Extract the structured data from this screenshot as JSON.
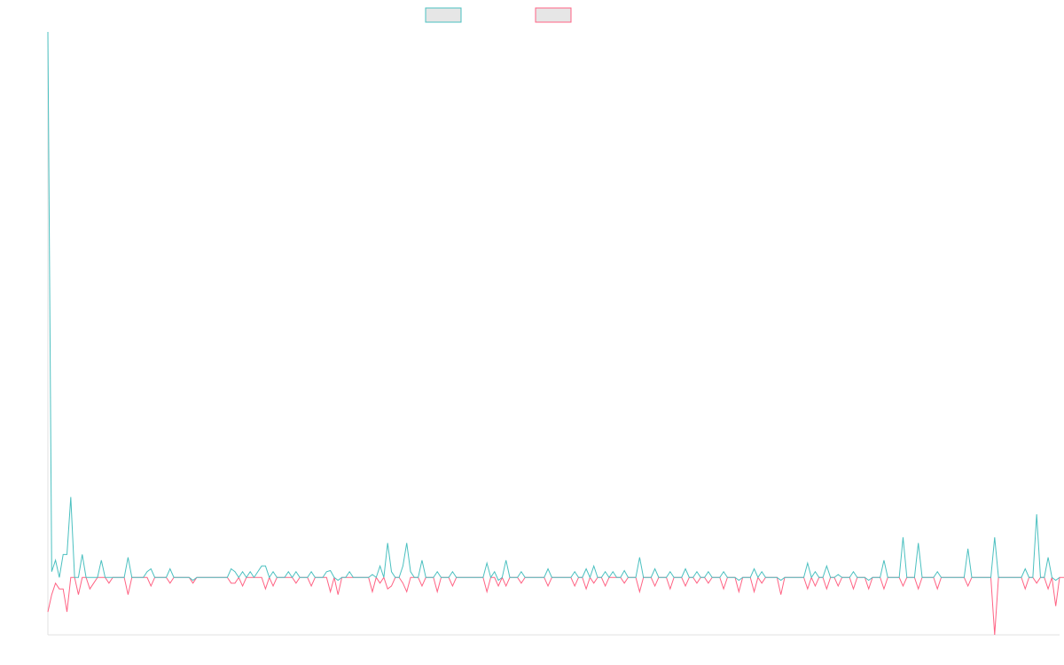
{
  "chart_data": {
    "type": "line",
    "title": "",
    "xlabel": "",
    "ylabel": "",
    "grid": false,
    "legend_position": "top",
    "x_range": [
      0,
      265
    ],
    "ylim": [
      -10,
      95
    ],
    "series": [
      {
        "color": "#4bc0c0",
        "values": [
          95,
          1,
          3,
          0,
          4,
          4,
          14,
          0,
          0,
          4,
          0,
          0,
          0,
          0,
          3,
          0,
          0,
          0,
          0,
          0,
          0,
          0,
          0,
          0,
          0,
          0,
          1,
          0,
          0,
          0,
          0,
          0,
          0,
          0,
          0,
          0,
          0,
          0,
          0,
          0,
          0,
          0,
          0,
          0,
          0,
          0,
          0,
          0,
          0,
          1,
          0,
          0,
          0,
          1,
          0,
          1,
          2,
          0,
          0,
          0,
          0,
          0,
          0,
          1,
          0,
          0,
          0,
          0,
          0,
          0,
          0,
          0,
          0,
          1,
          0,
          0,
          0,
          0,
          0,
          1,
          0,
          0,
          0,
          0,
          0,
          1,
          0,
          0,
          0,
          6,
          0,
          0,
          0,
          0,
          0,
          1,
          0,
          0,
          0,
          0,
          0,
          0,
          0,
          0,
          0,
          0,
          0,
          0,
          0,
          0,
          0,
          0,
          0,
          0,
          0,
          0,
          0,
          1,
          0,
          0,
          0,
          0,
          0,
          0,
          0,
          0,
          0,
          0,
          0,
          0,
          0,
          0,
          0,
          0,
          0,
          0,
          0,
          0,
          0,
          0,
          0,
          0,
          0,
          0,
          0,
          0,
          0,
          0,
          1,
          0,
          0,
          0,
          0,
          0,
          0,
          0,
          0,
          0,
          0,
          0,
          0,
          0,
          0,
          0,
          0,
          0,
          0,
          0,
          0,
          0,
          0,
          0,
          0,
          0,
          0,
          0,
          0,
          0,
          0,
          0,
          0,
          0,
          0,
          0,
          0,
          0,
          0,
          0,
          0,
          0,
          0,
          0,
          0,
          0,
          0,
          0,
          0,
          0,
          0,
          0,
          0,
          0,
          0,
          0,
          0,
          0,
          0,
          0,
          0,
          0,
          0,
          0,
          0,
          0,
          0,
          0,
          0,
          0,
          0,
          0,
          0,
          0,
          0,
          0,
          0,
          0,
          0,
          0,
          0,
          0,
          0,
          0,
          0,
          0,
          0,
          0,
          0,
          0,
          0,
          0,
          0,
          0,
          0,
          0,
          0,
          0,
          0,
          0,
          0,
          0,
          0,
          0,
          0,
          0,
          0,
          0,
          0,
          0,
          0,
          0,
          0,
          0,
          0,
          0,
          0,
          0
        ]
      },
      {
        "color": "#ff6384",
        "values": [
          -6,
          -3,
          -1,
          -2,
          -2,
          -6,
          0,
          0,
          -3,
          0,
          0,
          -2,
          -1,
          0,
          0,
          0,
          -1,
          0,
          0,
          0,
          0,
          0,
          0,
          0,
          0,
          0,
          0,
          0,
          0,
          0,
          0,
          0,
          0,
          0,
          0,
          0,
          0,
          0,
          0,
          0,
          0,
          0,
          0,
          0,
          0,
          0,
          0,
          0,
          0,
          -1,
          0,
          0,
          0,
          0,
          0,
          0,
          0,
          0,
          0,
          0,
          0,
          0,
          0,
          0,
          0,
          0,
          0,
          0,
          0,
          0,
          0,
          0,
          0,
          0,
          0,
          0,
          0,
          0,
          0,
          0,
          0,
          0,
          0,
          0,
          0,
          -1,
          0,
          0,
          0,
          -2,
          0,
          0,
          0,
          0,
          0,
          0,
          0,
          0,
          0,
          0,
          0,
          0,
          0,
          0,
          0,
          0,
          0,
          0,
          0,
          0,
          0,
          0,
          0,
          0,
          0,
          0,
          0,
          0,
          0,
          0,
          0,
          0,
          0,
          0,
          0,
          0,
          0,
          0,
          0,
          0,
          0,
          0,
          0,
          0,
          0,
          0,
          0,
          0,
          0,
          0,
          0,
          0,
          0,
          0,
          0,
          0,
          0,
          0,
          0,
          0,
          0,
          0,
          0,
          0,
          0,
          0,
          0,
          0,
          0,
          0,
          0,
          0,
          0,
          0,
          0,
          0,
          0,
          0,
          0,
          0,
          0,
          0,
          0,
          0,
          0,
          0,
          0,
          0,
          0,
          0,
          0,
          0,
          0,
          0,
          0,
          0,
          0,
          0,
          0,
          0,
          0,
          0,
          0,
          0,
          0,
          0,
          0,
          0,
          0,
          0,
          0,
          0,
          0,
          0,
          0,
          0,
          0,
          0,
          0,
          0,
          0,
          0,
          0,
          0,
          0,
          0,
          0,
          0,
          0,
          0,
          0,
          0,
          0,
          0,
          0,
          0,
          0,
          0,
          0,
          0,
          0,
          0,
          0,
          0,
          0,
          0,
          0,
          0,
          0,
          0,
          0,
          0,
          0,
          0,
          0,
          0,
          0,
          0,
          0,
          0,
          0,
          0,
          0,
          0,
          0,
          0,
          0,
          0,
          0,
          0,
          0,
          0,
          0,
          0,
          0,
          0,
          0,
          0,
          0
        ]
      }
    ]
  },
  "spikes": [
    {
      "series": 0,
      "at": [
        [
          21,
          3.5
        ],
        [
          27,
          1.5
        ],
        [
          32,
          1.5
        ],
        [
          38,
          -0.5
        ],
        [
          48,
          1.5
        ],
        [
          51,
          1
        ],
        [
          57,
          2
        ],
        [
          59,
          1
        ],
        [
          65,
          1
        ],
        [
          69,
          1
        ],
        [
          74,
          1.2
        ],
        [
          76,
          -0.5
        ],
        [
          85,
          0.5
        ],
        [
          87,
          2
        ],
        [
          90,
          1
        ],
        [
          93,
          2
        ],
        [
          94,
          6
        ],
        [
          98,
          3
        ],
        [
          102,
          1
        ],
        [
          106,
          1
        ],
        [
          115,
          2.5
        ],
        [
          118,
          -0.5
        ],
        [
          120,
          3
        ],
        [
          124,
          1
        ],
        [
          131,
          1.5
        ],
        [
          138,
          1
        ],
        [
          141,
          1.5
        ],
        [
          143,
          2
        ],
        [
          146,
          1
        ],
        [
          151,
          1.2
        ],
        [
          155,
          3.5
        ],
        [
          159,
          1.5
        ],
        [
          163,
          1
        ],
        [
          167,
          1.5
        ],
        [
          170,
          1
        ],
        [
          173,
          1
        ],
        [
          177,
          1
        ],
        [
          181,
          -0.5
        ],
        [
          185,
          1.5
        ],
        [
          187,
          1
        ],
        [
          192,
          -0.5
        ],
        [
          199,
          2.5
        ],
        [
          201,
          1
        ],
        [
          204,
          2
        ],
        [
          207,
          0.5
        ],
        [
          211,
          1
        ],
        [
          215,
          -0.5
        ],
        [
          219,
          3
        ],
        [
          224,
          7
        ],
        [
          228,
          6
        ],
        [
          233,
          1
        ],
        [
          241,
          5
        ],
        [
          248,
          7
        ],
        [
          256,
          1.5
        ],
        [
          259,
          11
        ],
        [
          262,
          3.5
        ],
        [
          264,
          -0.5
        ]
      ]
    },
    {
      "series": 1,
      "at": [
        [
          21,
          -3
        ],
        [
          27,
          -1.5
        ],
        [
          32,
          -1
        ],
        [
          38,
          -1
        ],
        [
          48,
          -1
        ],
        [
          51,
          -1.5
        ],
        [
          57,
          -2
        ],
        [
          59,
          -1.5
        ],
        [
          65,
          -1
        ],
        [
          69,
          -1.5
        ],
        [
          74,
          -2.5
        ],
        [
          76,
          -3
        ],
        [
          85,
          -2.5
        ],
        [
          87,
          -1
        ],
        [
          90,
          -1.5
        ],
        [
          93,
          -1
        ],
        [
          94,
          -2.5
        ],
        [
          98,
          -1.5
        ],
        [
          102,
          -2.5
        ],
        [
          106,
          -1.5
        ],
        [
          115,
          -2.5
        ],
        [
          118,
          -1.5
        ],
        [
          120,
          -1.5
        ],
        [
          124,
          -1
        ],
        [
          131,
          -1.5
        ],
        [
          138,
          -1.5
        ],
        [
          141,
          -2
        ],
        [
          143,
          -1
        ],
        [
          146,
          -1.5
        ],
        [
          151,
          -1
        ],
        [
          155,
          -2.5
        ],
        [
          159,
          -1.5
        ],
        [
          163,
          -2
        ],
        [
          167,
          -1.5
        ],
        [
          170,
          -1
        ],
        [
          173,
          -1
        ],
        [
          177,
          -2
        ],
        [
          181,
          -2.5
        ],
        [
          185,
          -2.5
        ],
        [
          187,
          -1
        ],
        [
          192,
          -3
        ],
        [
          199,
          -2
        ],
        [
          201,
          -1.5
        ],
        [
          204,
          -2
        ],
        [
          207,
          -1.5
        ],
        [
          211,
          -2
        ],
        [
          215,
          -2
        ],
        [
          219,
          -2
        ],
        [
          224,
          -1.5
        ],
        [
          228,
          -2
        ],
        [
          233,
          -2
        ],
        [
          241,
          -1.5
        ],
        [
          248,
          -10
        ],
        [
          256,
          -2
        ],
        [
          259,
          -1
        ],
        [
          262,
          -2
        ],
        [
          264,
          -5
        ]
      ]
    }
  ]
}
